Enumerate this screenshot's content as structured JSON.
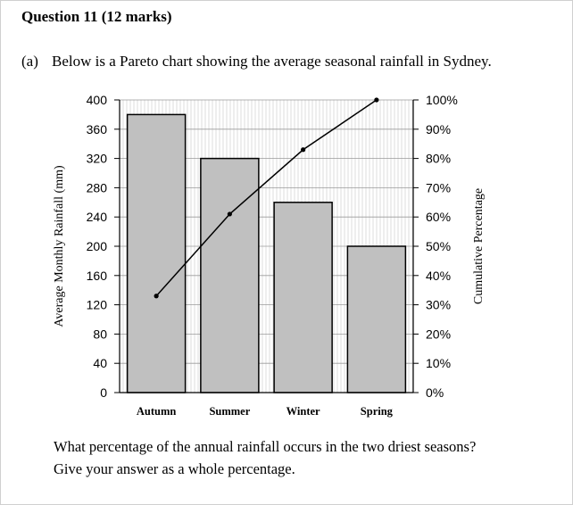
{
  "header": {
    "question_title": "Question 11 (12 marks)"
  },
  "part_a": {
    "label": "(a)",
    "intro": "Below is a Pareto chart showing the average seasonal rainfall in Sydney.",
    "prompt_line1": "What percentage of the annual rainfall occurs in the two driest seasons?",
    "prompt_line2": "Give your answer as a whole percentage."
  },
  "chart_data": {
    "type": "bar",
    "categories": [
      "Autumn",
      "Summer",
      "Winter",
      "Spring"
    ],
    "values": [
      380,
      320,
      260,
      200
    ],
    "ylabel": "Average Monthly Rainfall (mm)",
    "ylim": [
      0,
      400
    ],
    "yticks": [
      0,
      40,
      80,
      120,
      160,
      200,
      240,
      280,
      320,
      360,
      400
    ],
    "y2label": "Cumulative Percentage",
    "y2lim": [
      0,
      100
    ],
    "y2ticks": [
      "0%",
      "10%",
      "20%",
      "30%",
      "40%",
      "50%",
      "60%",
      "70%",
      "80%",
      "90%",
      "100%"
    ],
    "cumulative_percent": [
      33,
      61,
      83,
      100
    ],
    "grid": true,
    "colors": {
      "bar_fill": "#c0c0c0",
      "bar_stroke": "#000000",
      "grid": "#9a9a9a",
      "line": "#000000"
    }
  }
}
